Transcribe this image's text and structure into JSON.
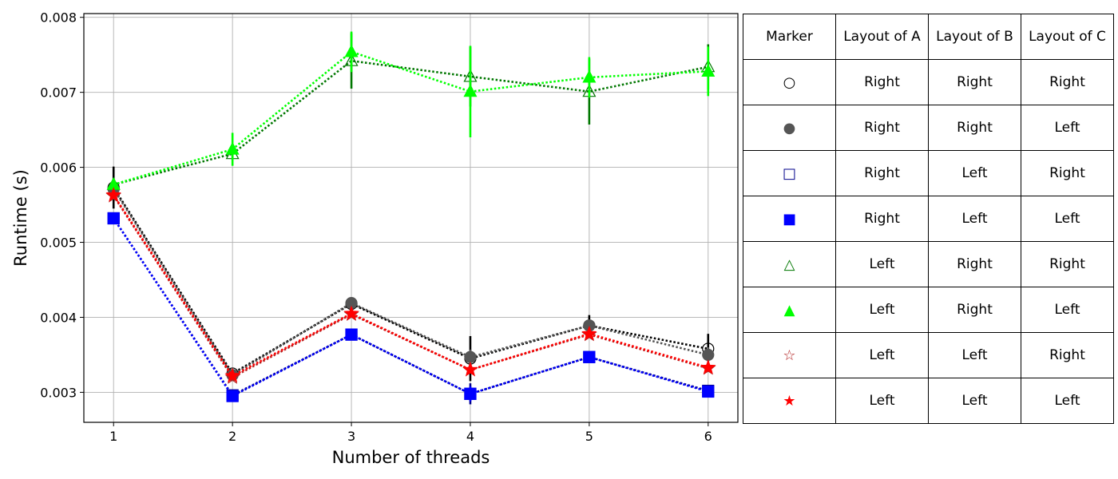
{
  "chart_data": {
    "type": "line",
    "xlabel": "Number of threads",
    "ylabel": "Runtime (s)",
    "x": [
      1,
      2,
      3,
      4,
      5,
      6
    ],
    "xlim": [
      0.75,
      6.25
    ],
    "ylim": [
      0.0026,
      0.00805
    ],
    "yticks": [
      "0.003",
      "0.004",
      "0.005",
      "0.006",
      "0.007",
      "0.008"
    ],
    "grid": true,
    "series": [
      {
        "marker": "circle-open",
        "color": "#000000",
        "values": [
          0.00573,
          0.00325,
          0.00418,
          0.00345,
          0.00389,
          0.00358
        ],
        "errors": [
          0.00028,
          5e-05,
          5e-05,
          0.0003,
          0.00014,
          0.0002
        ]
      },
      {
        "marker": "circle-filled",
        "color": "#555555",
        "values": [
          0.00571,
          0.00323,
          0.00419,
          0.00347,
          0.00389,
          0.0035
        ],
        "errors": [
          0.00012,
          5e-05,
          5e-05,
          0.0001,
          8e-05,
          0.0001
        ]
      },
      {
        "marker": "square-open",
        "color": "#00008b",
        "values": [
          0.00532,
          0.00296,
          0.00377,
          0.00298,
          0.00347,
          0.00302
        ],
        "errors": [
          4e-05,
          3e-05,
          4e-05,
          0.00014,
          4e-05,
          5e-05
        ]
      },
      {
        "marker": "square-filled",
        "color": "#0000ff",
        "values": [
          0.00532,
          0.00295,
          0.00377,
          0.00298,
          0.00347,
          0.00301
        ],
        "errors": [
          4e-05,
          3e-05,
          4e-05,
          0.0001,
          4e-05,
          5e-05
        ]
      },
      {
        "marker": "triangle-open",
        "color": "#007700",
        "values": [
          0.00577,
          0.00618,
          0.00742,
          0.00721,
          0.00701,
          0.00734
        ],
        "errors": [
          5e-05,
          8e-05,
          0.00037,
          0.0004,
          0.00044,
          0.0003
        ]
      },
      {
        "marker": "triangle-filled",
        "color": "#00ff00",
        "values": [
          0.00577,
          0.00624,
          0.00754,
          0.00701,
          0.0072,
          0.00728
        ],
        "errors": [
          4e-05,
          0.00022,
          0.00027,
          0.00061,
          0.00027,
          0.00033
        ]
      },
      {
        "marker": "star-open",
        "color": "#b22222",
        "values": [
          0.00562,
          0.0032,
          0.00404,
          0.0033,
          0.00377,
          0.00332
        ],
        "errors": [
          5e-05,
          4e-05,
          4e-05,
          5e-05,
          4e-05,
          5e-05
        ]
      },
      {
        "marker": "star-filled",
        "color": "#ff0000",
        "values": [
          0.00563,
          0.00322,
          0.00405,
          0.0033,
          0.00378,
          0.00333
        ],
        "errors": [
          4e-05,
          4e-05,
          4e-05,
          5e-05,
          4e-05,
          5e-05
        ]
      }
    ]
  },
  "table": {
    "headers": [
      "Marker",
      "Layout of A",
      "Layout of B",
      "Layout of C"
    ],
    "rows": [
      {
        "marker": "○",
        "color": "#000000",
        "a": "Right",
        "b": "Right",
        "c": "Right"
      },
      {
        "marker": "●",
        "color": "#555555",
        "a": "Right",
        "b": "Right",
        "c": "Left"
      },
      {
        "marker": "□",
        "color": "#00008b",
        "a": "Right",
        "b": "Left",
        "c": "Right"
      },
      {
        "marker": "■",
        "color": "#0000ff",
        "a": "Right",
        "b": "Left",
        "c": "Left"
      },
      {
        "marker": "△",
        "color": "#007700",
        "a": "Left",
        "b": "Right",
        "c": "Right"
      },
      {
        "marker": "▲",
        "color": "#00ff00",
        "a": "Left",
        "b": "Right",
        "c": "Left"
      },
      {
        "marker": "☆",
        "color": "#b22222",
        "a": "Left",
        "b": "Left",
        "c": "Right"
      },
      {
        "marker": "★",
        "color": "#ff0000",
        "a": "Left",
        "b": "Left",
        "c": "Left"
      }
    ]
  }
}
